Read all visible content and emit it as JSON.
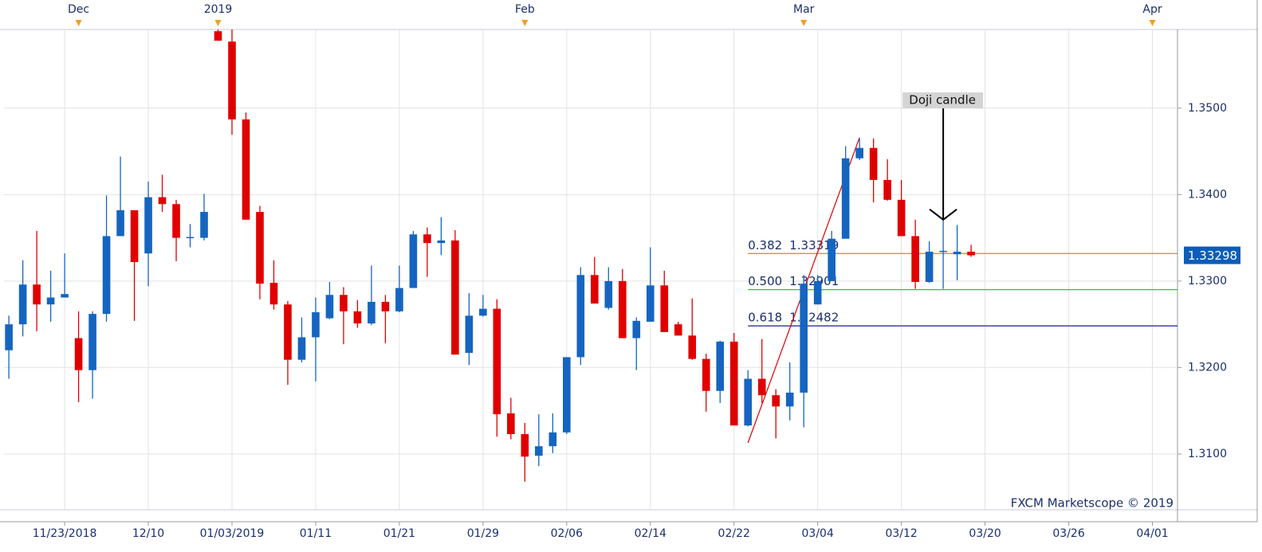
{
  "chart_data": {
    "type": "candlestick",
    "up_color": "#1565c0",
    "down_color": "#e00000",
    "open": [
      1.322,
      1.325,
      1.3296,
      1.3273,
      1.3281,
      1.3234,
      1.3197,
      1.3262,
      1.3352,
      1.3382,
      1.3332,
      1.3397,
      1.3389,
      1.335,
      1.335,
      1.3589,
      1.3577,
      1.3487,
      1.338,
      1.3298,
      1.3273,
      1.3209,
      1.3235,
      1.3257,
      1.3284,
      1.3265,
      1.3251,
      1.3276,
      1.3265,
      1.3292,
      1.3354,
      1.3344,
      1.3347,
      1.3217,
      1.326,
      1.3268,
      1.3147,
      1.3123,
      1.3098,
      1.3109,
      1.3125,
      1.3212,
      1.3307,
      1.3269,
      1.33,
      1.3234,
      1.3253,
      1.3295,
      1.325,
      1.3237,
      1.321,
      1.3173,
      1.323,
      1.3133,
      1.3187,
      1.3168,
      1.3155,
      1.3171,
      1.3273,
      1.33,
      1.3349,
      1.3442,
      1.3454,
      1.3417,
      1.3394,
      1.3352,
      1.3299,
      1.3334,
      1.3331,
      1.3334
    ],
    "high": [
      1.326,
      1.3324,
      1.3358,
      1.3312,
      1.3332,
      1.3265,
      1.3265,
      1.3399,
      1.3444,
      1.3382,
      1.3415,
      1.3423,
      1.3394,
      1.3366,
      1.3401,
      1.3591,
      1.3591,
      1.3495,
      1.3387,
      1.3324,
      1.3277,
      1.3258,
      1.3281,
      1.3299,
      1.3293,
      1.3278,
      1.3318,
      1.3284,
      1.3318,
      1.3358,
      1.3362,
      1.3374,
      1.3359,
      1.3286,
      1.3284,
      1.3279,
      1.3165,
      1.3136,
      1.3146,
      1.3147,
      1.3212,
      1.3316,
      1.3328,
      1.3316,
      1.3314,
      1.3258,
      1.3339,
      1.3312,
      1.3253,
      1.328,
      1.3216,
      1.3231,
      1.324,
      1.3197,
      1.3233,
      1.3175,
      1.3206,
      1.3307,
      1.3307,
      1.3358,
      1.3456,
      1.3465,
      1.3465,
      1.3441,
      1.3417,
      1.3371,
      1.3346,
      1.3371,
      1.3365,
      1.3342
    ],
    "low": [
      1.3187,
      1.3236,
      1.3242,
      1.3253,
      1.3281,
      1.316,
      1.3164,
      1.3253,
      1.3352,
      1.3254,
      1.3294,
      1.338,
      1.3323,
      1.3339,
      1.3347,
      1.3578,
      1.3469,
      1.3371,
      1.3279,
      1.3267,
      1.318,
      1.3206,
      1.3184,
      1.3256,
      1.3227,
      1.3246,
      1.3249,
      1.3228,
      1.3264,
      1.3292,
      1.3305,
      1.333,
      1.3215,
      1.3203,
      1.3259,
      1.312,
      1.3117,
      1.3068,
      1.3086,
      1.3101,
      1.3123,
      1.3203,
      1.3274,
      1.3267,
      1.3234,
      1.3197,
      1.3253,
      1.3241,
      1.3237,
      1.3209,
      1.3149,
      1.3159,
      1.3133,
      1.3132,
      1.3159,
      1.3118,
      1.3139,
      1.3131,
      1.3273,
      1.33,
      1.3349,
      1.344,
      1.3391,
      1.3393,
      1.3352,
      1.3291,
      1.3298,
      1.3291,
      1.3301,
      1.3328
    ],
    "close": [
      1.325,
      1.3296,
      1.3273,
      1.3281,
      1.3285,
      1.3197,
      1.3262,
      1.3352,
      1.3382,
      1.3322,
      1.3397,
      1.3389,
      1.335,
      1.3351,
      1.338,
      1.3578,
      1.3487,
      1.3371,
      1.3297,
      1.3273,
      1.3209,
      1.3235,
      1.3264,
      1.3284,
      1.3265,
      1.3251,
      1.3276,
      1.3265,
      1.3292,
      1.3354,
      1.3344,
      1.3347,
      1.3215,
      1.326,
      1.3268,
      1.3146,
      1.3123,
      1.3097,
      1.3109,
      1.3125,
      1.3212,
      1.3307,
      1.3274,
      1.33,
      1.3234,
      1.3254,
      1.3295,
      1.3241,
      1.3237,
      1.321,
      1.3173,
      1.323,
      1.3133,
      1.3187,
      1.3168,
      1.3155,
      1.3171,
      1.3297,
      1.33,
      1.3349,
      1.3442,
      1.3454,
      1.3417,
      1.3394,
      1.3352,
      1.3299,
      1.3334,
      1.3335,
      1.3334,
      1.33298
    ],
    "xlim": [
      -0.35,
      83.8
    ],
    "ylim": [
      1.30355,
      1.3591
    ],
    "yticks": [
      {
        "value": 1.31,
        "label": "1.3100"
      },
      {
        "value": 1.32,
        "label": "1.3200"
      },
      {
        "value": 1.33,
        "label": "1.3300"
      },
      {
        "value": 1.34,
        "label": "1.3400"
      },
      {
        "value": 1.35,
        "label": "1.3500"
      }
    ],
    "xticks": [
      {
        "value": 4,
        "label": "11/23/2018"
      },
      {
        "value": 10,
        "label": "12/10"
      },
      {
        "value": 16,
        "label": "01/03/2019"
      },
      {
        "value": 22,
        "label": "01/11"
      },
      {
        "value": 28,
        "label": "01/21"
      },
      {
        "value": 34,
        "label": "01/29"
      },
      {
        "value": 40,
        "label": "02/06"
      },
      {
        "value": 46,
        "label": "02/14"
      },
      {
        "value": 52,
        "label": "02/22"
      },
      {
        "value": 58,
        "label": "03/04"
      },
      {
        "value": 64,
        "label": "03/12"
      },
      {
        "value": 70,
        "label": "03/20"
      },
      {
        "value": 76,
        "label": "03/26"
      },
      {
        "value": 82,
        "label": "04/01"
      }
    ],
    "top_ticks": [
      {
        "value": 5,
        "label": "Dec"
      },
      {
        "value": 15,
        "label": "2019"
      },
      {
        "value": 37,
        "label": "Feb"
      },
      {
        "value": 57,
        "label": "Mar"
      },
      {
        "value": 82,
        "label": "Apr"
      }
    ],
    "grid": true,
    "last_price": 1.33298,
    "trendline": {
      "x": [
        53,
        61
      ],
      "y": [
        1.3113,
        1.3466
      ],
      "color": "#e00000"
    },
    "fib_levels": [
      {
        "label": "0.382",
        "value": 1.33319,
        "color": "#f07820"
      },
      {
        "label": "0.500",
        "value": 1.32901,
        "color": "#22cc22"
      },
      {
        "label": "0.618",
        "value": 1.32482,
        "color": "#1a1a9e"
      }
    ],
    "annotation": {
      "text": "Doji candle",
      "x": 67
    },
    "watermark": "FXCM Marketscope © 2019"
  }
}
